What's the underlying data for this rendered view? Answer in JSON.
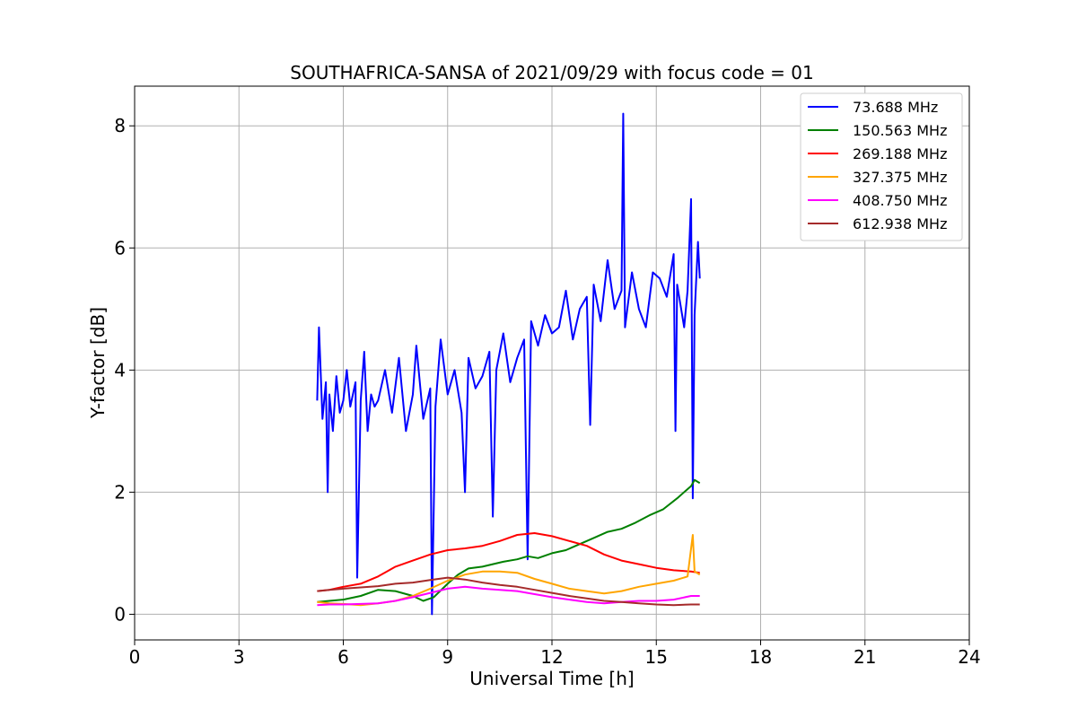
{
  "chart_data": {
    "type": "line",
    "title": "SOUTHAFRICA-SANSA of 2021/09/29 with focus code = 01",
    "xlabel": "Universal Time [h]",
    "ylabel": "Y-factor [dB]",
    "xlim": [
      0,
      24
    ],
    "ylim": [
      -0.42,
      8.65
    ],
    "xticks": [
      0,
      3,
      6,
      9,
      12,
      15,
      18,
      21,
      24
    ],
    "yticks": [
      0,
      2,
      4,
      6,
      8
    ],
    "grid": true,
    "legend_position": "top-right",
    "series": [
      {
        "name": " 73.688 MHz",
        "color": "#0000ff",
        "x": [
          5.25,
          5.3,
          5.4,
          5.5,
          5.55,
          5.6,
          5.7,
          5.8,
          5.9,
          6.0,
          6.1,
          6.2,
          6.35,
          6.4,
          6.5,
          6.6,
          6.7,
          6.8,
          6.9,
          7.0,
          7.2,
          7.4,
          7.6,
          7.8,
          8.0,
          8.1,
          8.3,
          8.5,
          8.55,
          8.65,
          8.8,
          9.0,
          9.2,
          9.4,
          9.5,
          9.6,
          9.8,
          10.0,
          10.2,
          10.3,
          10.4,
          10.6,
          10.8,
          11.0,
          11.2,
          11.3,
          11.4,
          11.6,
          11.8,
          12.0,
          12.2,
          12.4,
          12.6,
          12.8,
          13.0,
          13.1,
          13.2,
          13.4,
          13.6,
          13.8,
          14.0,
          14.05,
          14.1,
          14.3,
          14.5,
          14.7,
          14.9,
          15.1,
          15.3,
          15.5,
          15.55,
          15.6,
          15.8,
          15.9,
          16.0,
          16.05,
          16.1,
          16.2,
          16.25
        ],
        "y": [
          3.5,
          4.7,
          3.2,
          3.8,
          2.0,
          3.6,
          3.0,
          3.9,
          3.3,
          3.5,
          4.0,
          3.4,
          3.8,
          0.6,
          3.5,
          4.3,
          3.0,
          3.6,
          3.4,
          3.5,
          4.0,
          3.3,
          4.2,
          3.0,
          3.6,
          4.4,
          3.2,
          3.7,
          0.0,
          3.4,
          4.5,
          3.6,
          4.0,
          3.3,
          2.0,
          4.2,
          3.7,
          3.9,
          4.3,
          1.6,
          4.0,
          4.6,
          3.8,
          4.2,
          4.5,
          0.9,
          4.8,
          4.4,
          4.9,
          4.6,
          4.7,
          5.3,
          4.5,
          5.0,
          5.2,
          3.1,
          5.4,
          4.8,
          5.8,
          5.0,
          5.3,
          8.2,
          4.7,
          5.6,
          5.0,
          4.7,
          5.6,
          5.5,
          5.2,
          5.9,
          3.0,
          5.4,
          4.7,
          5.3,
          6.8,
          1.9,
          4.9,
          6.1,
          5.5
        ]
      },
      {
        "name": "150.563 MHz",
        "color": "#008000",
        "x": [
          5.25,
          5.6,
          6.0,
          6.5,
          7.0,
          7.5,
          8.0,
          8.3,
          8.6,
          9.0,
          9.3,
          9.6,
          10.0,
          10.3,
          10.6,
          11.0,
          11.3,
          11.6,
          12.0,
          12.4,
          12.8,
          13.2,
          13.6,
          14.0,
          14.4,
          14.8,
          15.2,
          15.6,
          15.9,
          16.0,
          16.1,
          16.25
        ],
        "y": [
          0.2,
          0.22,
          0.24,
          0.3,
          0.4,
          0.38,
          0.3,
          0.22,
          0.28,
          0.5,
          0.65,
          0.75,
          0.78,
          0.82,
          0.86,
          0.9,
          0.95,
          0.92,
          1.0,
          1.05,
          1.15,
          1.25,
          1.35,
          1.4,
          1.5,
          1.62,
          1.72,
          1.9,
          2.05,
          2.1,
          2.2,
          2.15
        ]
      },
      {
        "name": "269.188 MHz",
        "color": "#ff0000",
        "x": [
          5.25,
          5.6,
          6.0,
          6.5,
          7.0,
          7.5,
          8.0,
          8.5,
          9.0,
          9.5,
          10.0,
          10.5,
          11.0,
          11.5,
          12.0,
          12.5,
          13.0,
          13.5,
          14.0,
          14.5,
          15.0,
          15.5,
          16.0,
          16.25
        ],
        "y": [
          0.38,
          0.4,
          0.45,
          0.5,
          0.62,
          0.78,
          0.88,
          0.98,
          1.05,
          1.08,
          1.12,
          1.2,
          1.3,
          1.33,
          1.28,
          1.2,
          1.12,
          0.98,
          0.88,
          0.82,
          0.76,
          0.72,
          0.7,
          0.68
        ]
      },
      {
        "name": "327.375 MHz",
        "color": "#ffa500",
        "x": [
          5.25,
          5.6,
          6.0,
          6.5,
          7.0,
          7.5,
          8.0,
          8.5,
          9.0,
          9.5,
          10.0,
          10.5,
          11.0,
          11.5,
          12.0,
          12.5,
          13.0,
          13.5,
          14.0,
          14.5,
          15.0,
          15.5,
          15.9,
          16.05,
          16.1,
          16.25
        ],
        "y": [
          0.2,
          0.18,
          0.17,
          0.15,
          0.18,
          0.22,
          0.3,
          0.42,
          0.55,
          0.65,
          0.7,
          0.7,
          0.68,
          0.58,
          0.5,
          0.42,
          0.38,
          0.34,
          0.38,
          0.45,
          0.5,
          0.55,
          0.62,
          1.3,
          0.7,
          0.65
        ]
      },
      {
        "name": "408.750 MHz",
        "color": "#ff00ff",
        "x": [
          5.25,
          5.6,
          6.0,
          6.5,
          7.0,
          7.5,
          8.0,
          8.5,
          9.0,
          9.5,
          10.0,
          10.5,
          11.0,
          11.5,
          12.0,
          12.5,
          13.0,
          13.5,
          14.0,
          14.5,
          15.0,
          15.5,
          16.0,
          16.25
        ],
        "y": [
          0.15,
          0.16,
          0.16,
          0.17,
          0.18,
          0.22,
          0.28,
          0.35,
          0.42,
          0.45,
          0.42,
          0.4,
          0.38,
          0.33,
          0.28,
          0.24,
          0.2,
          0.18,
          0.2,
          0.22,
          0.22,
          0.24,
          0.3,
          0.3
        ]
      },
      {
        "name": "612.938 MHz",
        "color": "#a52a2a",
        "x": [
          5.25,
          5.6,
          6.0,
          6.5,
          7.0,
          7.5,
          8.0,
          8.5,
          9.0,
          9.5,
          10.0,
          10.5,
          11.0,
          11.5,
          12.0,
          12.5,
          13.0,
          13.5,
          14.0,
          14.5,
          15.0,
          15.5,
          16.0,
          16.25
        ],
        "y": [
          0.38,
          0.4,
          0.42,
          0.44,
          0.46,
          0.5,
          0.52,
          0.56,
          0.6,
          0.57,
          0.52,
          0.48,
          0.45,
          0.4,
          0.35,
          0.3,
          0.26,
          0.22,
          0.2,
          0.18,
          0.16,
          0.15,
          0.16,
          0.16
        ]
      }
    ]
  }
}
